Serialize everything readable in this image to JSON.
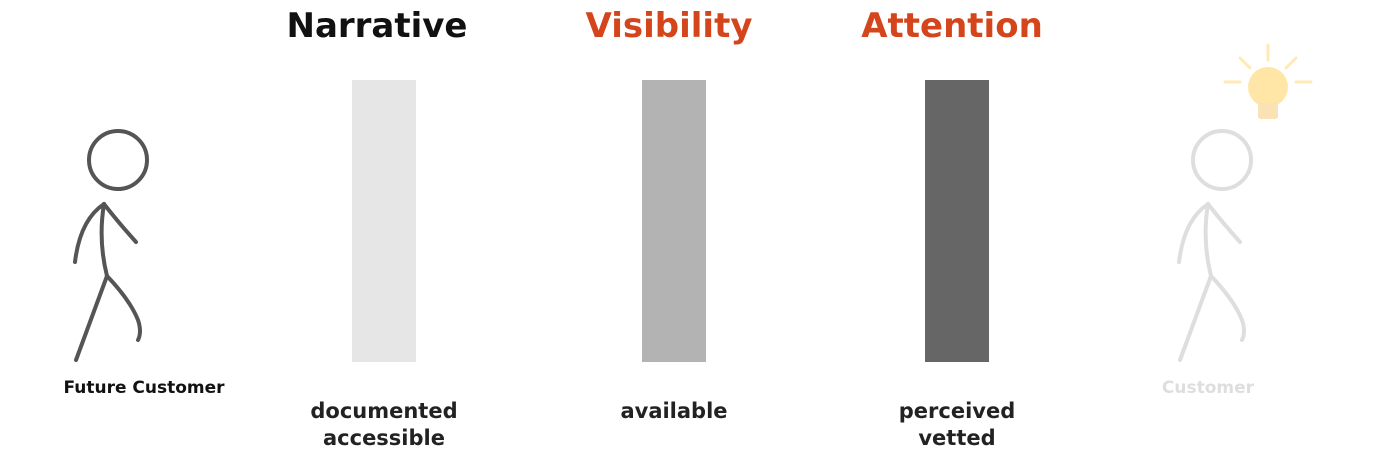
{
  "stages": [
    {
      "title": "Narrative",
      "lines": [
        "documented",
        "accessible"
      ]
    },
    {
      "title": "Visibility",
      "lines": [
        "available"
      ]
    },
    {
      "title": "Attention",
      "lines": [
        "perceived",
        "vetted"
      ]
    }
  ],
  "figures": [
    {
      "label": "Future Customer"
    },
    {
      "label": "Customer"
    }
  ]
}
